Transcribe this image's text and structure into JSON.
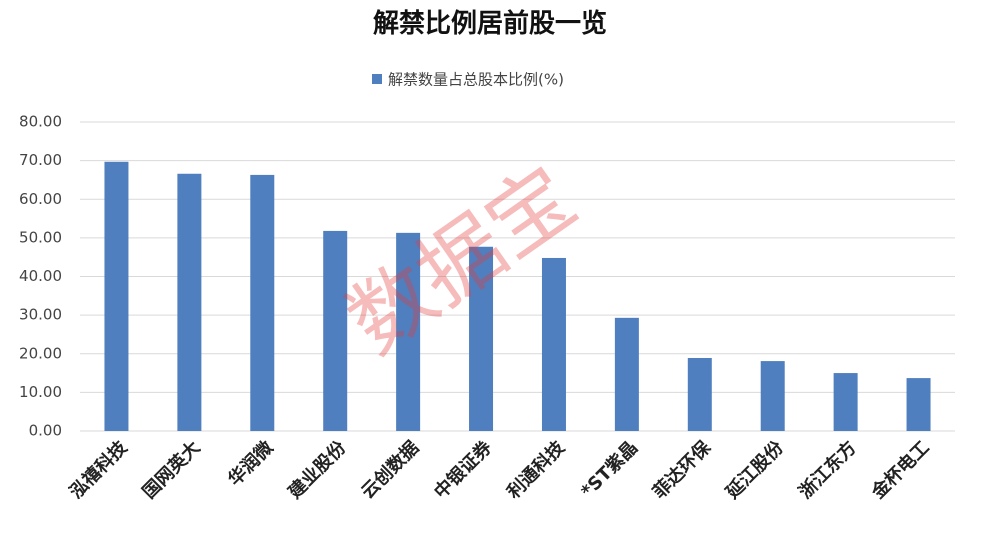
{
  "chart_data": {
    "type": "bar",
    "title": "解禁比例居前股一览",
    "watermark": "数据宝",
    "categories": [
      "泓禧科技",
      "国网英大",
      "华润微",
      "建业股份",
      "云创数据",
      "中银证券",
      "利通科技",
      "*ST紫晶",
      "菲达环保",
      "延江股份",
      "浙江东方",
      "金杯电工"
    ],
    "series": [
      {
        "name": "解禁数量占总股本比例(%)",
        "color": "#4f7fbf",
        "values": [
          69.7,
          66.6,
          66.3,
          51.8,
          51.3,
          47.7,
          44.8,
          29.3,
          18.9,
          18.1,
          15.0,
          13.7
        ]
      }
    ],
    "ylim": [
      0,
      80
    ],
    "yticks": [
      {
        "value": 0,
        "label": "0.00"
      },
      {
        "value": 10,
        "label": "10.00"
      },
      {
        "value": 20,
        "label": "20.00"
      },
      {
        "value": 30,
        "label": "30.00"
      },
      {
        "value": 40,
        "label": "40.00"
      },
      {
        "value": 50,
        "label": "50.00"
      },
      {
        "value": 60,
        "label": "60.00"
      },
      {
        "value": 70,
        "label": "70.00"
      },
      {
        "value": 80,
        "label": "80.00"
      }
    ],
    "grid": true,
    "legend": "top"
  }
}
